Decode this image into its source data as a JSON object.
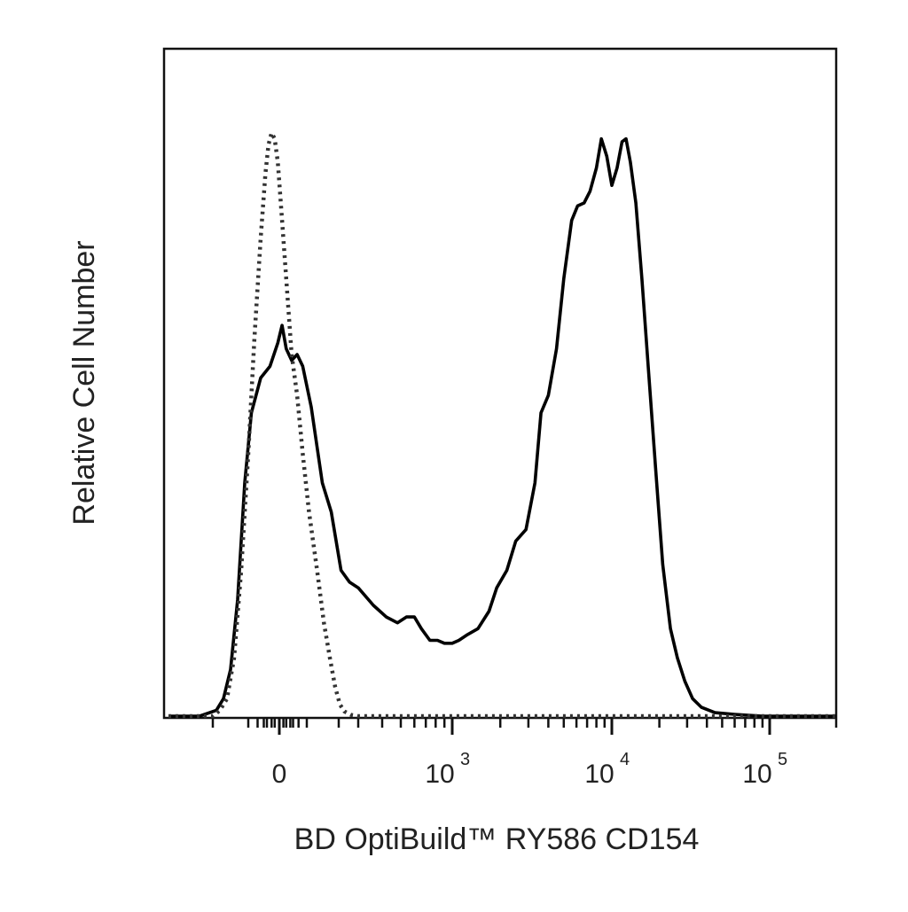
{
  "chart_data": {
    "type": "line",
    "title": "",
    "xlabel": "BD OptiBuild™ RY586 CD154",
    "ylabel": "Relative Cell Number",
    "x_scale": "biexponential",
    "xlim": [
      -300,
      200000
    ],
    "ylim": [
      0,
      100
    ],
    "y_ticks_shown": false,
    "grid": false,
    "legend": "none",
    "x_tick_labels": [
      {
        "value": 0,
        "base": "0",
        "exp": ""
      },
      {
        "value": 1000,
        "base": "10",
        "exp": "3"
      },
      {
        "value": 10000,
        "base": "10",
        "exp": "4"
      },
      {
        "value": 100000,
        "base": "10",
        "exp": "5"
      }
    ],
    "series": [
      {
        "style": "solid",
        "color": "#000000",
        "points": [
          [
            -300,
            0
          ],
          [
            -230,
            0
          ],
          [
            -190,
            1
          ],
          [
            -170,
            3
          ],
          [
            -150,
            8
          ],
          [
            -130,
            20
          ],
          [
            -110,
            40
          ],
          [
            -90,
            52
          ],
          [
            -60,
            58
          ],
          [
            -30,
            60
          ],
          [
            -5,
            64
          ],
          [
            10,
            67
          ],
          [
            25,
            63
          ],
          [
            45,
            61
          ],
          [
            65,
            62
          ],
          [
            85,
            60
          ],
          [
            110,
            53
          ],
          [
            140,
            40
          ],
          [
            170,
            35
          ],
          [
            210,
            25
          ],
          [
            250,
            23
          ],
          [
            300,
            22
          ],
          [
            360,
            19
          ],
          [
            420,
            17
          ],
          [
            480,
            16
          ],
          [
            540,
            17
          ],
          [
            600,
            17
          ],
          [
            660,
            15
          ],
          [
            740,
            13
          ],
          [
            820,
            13
          ],
          [
            900,
            12.5
          ],
          [
            1000,
            12.5
          ],
          [
            1100,
            13
          ],
          [
            1250,
            14
          ],
          [
            1450,
            15
          ],
          [
            1700,
            18
          ],
          [
            1900,
            22
          ],
          [
            2200,
            25
          ],
          [
            2500,
            30
          ],
          [
            2900,
            32
          ],
          [
            3300,
            40
          ],
          [
            3600,
            52
          ],
          [
            4000,
            55
          ],
          [
            4500,
            63
          ],
          [
            5000,
            75
          ],
          [
            5600,
            85
          ],
          [
            6100,
            87.5
          ],
          [
            6700,
            88
          ],
          [
            7300,
            90
          ],
          [
            8000,
            94
          ],
          [
            8600,
            99
          ],
          [
            9300,
            96
          ],
          [
            10000,
            91
          ],
          [
            10800,
            94
          ],
          [
            11600,
            98.5
          ],
          [
            12300,
            99
          ],
          [
            13100,
            95
          ],
          [
            14200,
            88
          ],
          [
            15500,
            75
          ],
          [
            17000,
            60
          ],
          [
            19000,
            42
          ],
          [
            21000,
            26
          ],
          [
            23500,
            15
          ],
          [
            26000,
            10
          ],
          [
            29000,
            6
          ],
          [
            32500,
            3
          ],
          [
            37000,
            1.5
          ],
          [
            45000,
            0.6
          ],
          [
            60000,
            0.3
          ],
          [
            90000,
            0
          ],
          [
            200000,
            0
          ]
        ]
      },
      {
        "style": "dotted",
        "color": "#333333",
        "points": [
          [
            -300,
            0
          ],
          [
            -200,
            0
          ],
          [
            -180,
            1
          ],
          [
            -160,
            3
          ],
          [
            -140,
            10
          ],
          [
            -120,
            25
          ],
          [
            -100,
            45
          ],
          [
            -80,
            65
          ],
          [
            -60,
            82
          ],
          [
            -45,
            93
          ],
          [
            -35,
            98
          ],
          [
            -25,
            100
          ],
          [
            -15,
            99
          ],
          [
            -5,
            95
          ],
          [
            10,
            85
          ],
          [
            25,
            75
          ],
          [
            45,
            62
          ],
          [
            65,
            55
          ],
          [
            85,
            45
          ],
          [
            105,
            35
          ],
          [
            125,
            25
          ],
          [
            145,
            16
          ],
          [
            165,
            10
          ],
          [
            185,
            5
          ],
          [
            205,
            2
          ],
          [
            225,
            0.8
          ],
          [
            260,
            0.2
          ],
          [
            300,
            0
          ],
          [
            200000,
            0
          ]
        ]
      }
    ]
  }
}
